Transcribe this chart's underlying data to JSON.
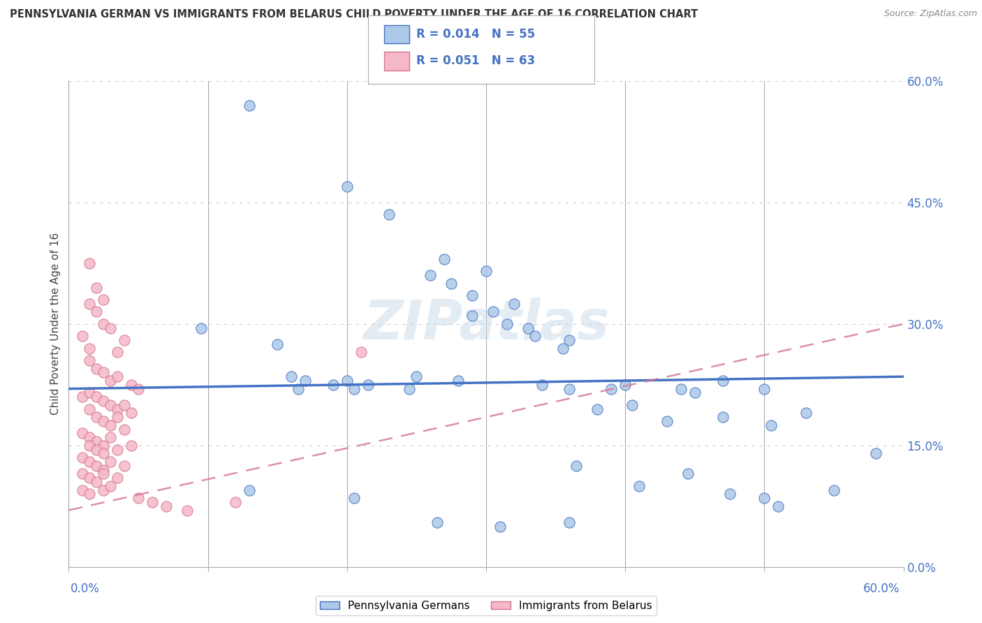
{
  "title": "PENNSYLVANIA GERMAN VS IMMIGRANTS FROM BELARUS CHILD POVERTY UNDER THE AGE OF 16 CORRELATION CHART",
  "source": "Source: ZipAtlas.com",
  "ylabel": "Child Poverty Under the Age of 16",
  "yticks": [
    "0.0%",
    "15.0%",
    "30.0%",
    "45.0%",
    "60.0%"
  ],
  "ytick_vals": [
    0.0,
    15.0,
    30.0,
    45.0,
    60.0
  ],
  "xlim": [
    0.0,
    60.0
  ],
  "ylim": [
    0.0,
    60.0
  ],
  "legend1_label": "Pennsylvania Germans",
  "legend2_label": "Immigrants from Belarus",
  "r1": "0.014",
  "n1": "55",
  "r2": "0.051",
  "n2": "63",
  "blue_color": "#adc8e8",
  "pink_color": "#f5b8c8",
  "blue_line_color": "#4472c4",
  "pink_line_color": "#d4748a",
  "blue_scatter": [
    [
      13.0,
      57.0
    ],
    [
      20.0,
      47.0
    ],
    [
      23.0,
      43.5
    ],
    [
      26.0,
      36.0
    ],
    [
      27.0,
      38.0
    ],
    [
      27.5,
      35.0
    ],
    [
      29.0,
      33.5
    ],
    [
      30.0,
      36.5
    ],
    [
      29.0,
      31.0
    ],
    [
      30.5,
      31.5
    ],
    [
      32.0,
      32.5
    ],
    [
      31.5,
      30.0
    ],
    [
      33.0,
      29.5
    ],
    [
      33.5,
      28.5
    ],
    [
      35.5,
      27.0
    ],
    [
      36.0,
      28.0
    ],
    [
      28.0,
      23.0
    ],
    [
      9.5,
      29.5
    ],
    [
      15.0,
      27.5
    ],
    [
      16.0,
      23.5
    ],
    [
      16.5,
      22.0
    ],
    [
      17.0,
      23.0
    ],
    [
      19.0,
      22.5
    ],
    [
      20.0,
      23.0
    ],
    [
      21.5,
      22.5
    ],
    [
      20.5,
      22.0
    ],
    [
      24.5,
      22.0
    ],
    [
      25.0,
      23.5
    ],
    [
      34.0,
      22.5
    ],
    [
      36.0,
      22.0
    ],
    [
      39.0,
      22.0
    ],
    [
      40.0,
      22.5
    ],
    [
      44.0,
      22.0
    ],
    [
      45.0,
      21.5
    ],
    [
      47.0,
      23.0
    ],
    [
      50.0,
      22.0
    ],
    [
      38.0,
      19.5
    ],
    [
      40.5,
      20.0
    ],
    [
      43.0,
      18.0
    ],
    [
      47.0,
      18.5
    ],
    [
      50.5,
      17.5
    ],
    [
      53.0,
      19.0
    ],
    [
      36.5,
      12.5
    ],
    [
      41.0,
      10.0
    ],
    [
      44.5,
      11.5
    ],
    [
      47.5,
      9.0
    ],
    [
      50.0,
      8.5
    ],
    [
      51.0,
      7.5
    ],
    [
      55.0,
      9.5
    ],
    [
      13.0,
      9.5
    ],
    [
      20.5,
      8.5
    ],
    [
      26.5,
      5.5
    ],
    [
      31.0,
      5.0
    ],
    [
      36.0,
      5.5
    ],
    [
      58.0,
      14.0
    ]
  ],
  "pink_scatter": [
    [
      1.5,
      37.5
    ],
    [
      2.0,
      34.5
    ],
    [
      2.5,
      33.0
    ],
    [
      1.5,
      32.5
    ],
    [
      2.0,
      31.5
    ],
    [
      2.5,
      30.0
    ],
    [
      1.0,
      28.5
    ],
    [
      1.5,
      27.0
    ],
    [
      3.0,
      29.5
    ],
    [
      3.5,
      26.5
    ],
    [
      4.0,
      28.0
    ],
    [
      1.5,
      25.5
    ],
    [
      2.0,
      24.5
    ],
    [
      2.5,
      24.0
    ],
    [
      3.0,
      23.0
    ],
    [
      3.5,
      23.5
    ],
    [
      4.5,
      22.5
    ],
    [
      5.0,
      22.0
    ],
    [
      1.0,
      21.0
    ],
    [
      1.5,
      21.5
    ],
    [
      2.0,
      21.0
    ],
    [
      2.5,
      20.5
    ],
    [
      3.0,
      20.0
    ],
    [
      3.5,
      19.5
    ],
    [
      4.0,
      20.0
    ],
    [
      4.5,
      19.0
    ],
    [
      1.5,
      19.5
    ],
    [
      2.0,
      18.5
    ],
    [
      2.5,
      18.0
    ],
    [
      3.0,
      17.5
    ],
    [
      3.5,
      18.5
    ],
    [
      4.0,
      17.0
    ],
    [
      1.0,
      16.5
    ],
    [
      1.5,
      16.0
    ],
    [
      2.0,
      15.5
    ],
    [
      2.5,
      15.0
    ],
    [
      3.0,
      16.0
    ],
    [
      1.5,
      15.0
    ],
    [
      2.0,
      14.5
    ],
    [
      2.5,
      14.0
    ],
    [
      3.5,
      14.5
    ],
    [
      4.5,
      15.0
    ],
    [
      1.0,
      13.5
    ],
    [
      1.5,
      13.0
    ],
    [
      2.0,
      12.5
    ],
    [
      2.5,
      12.0
    ],
    [
      3.0,
      13.0
    ],
    [
      4.0,
      12.5
    ],
    [
      1.0,
      11.5
    ],
    [
      1.5,
      11.0
    ],
    [
      2.0,
      10.5
    ],
    [
      2.5,
      11.5
    ],
    [
      3.5,
      11.0
    ],
    [
      1.0,
      9.5
    ],
    [
      1.5,
      9.0
    ],
    [
      2.5,
      9.5
    ],
    [
      3.0,
      10.0
    ],
    [
      12.0,
      8.0
    ],
    [
      5.0,
      8.5
    ],
    [
      6.0,
      8.0
    ],
    [
      7.0,
      7.5
    ],
    [
      8.5,
      7.0
    ],
    [
      21.0,
      26.5
    ]
  ],
  "watermark": "ZIPatlas",
  "background_color": "#ffffff",
  "grid_color": "#cccccc"
}
